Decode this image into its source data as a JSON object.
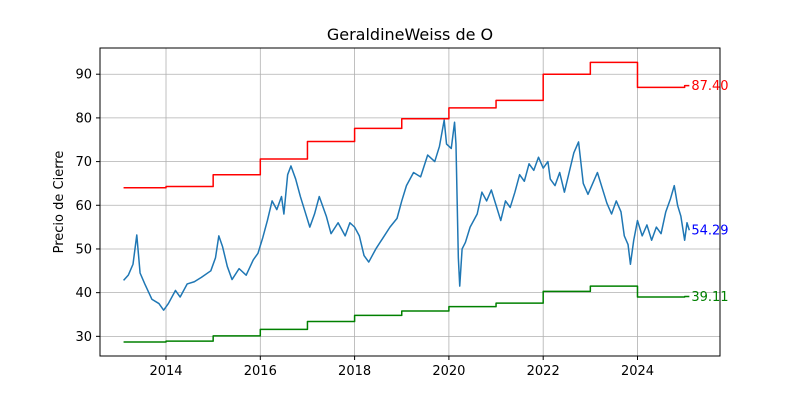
{
  "chart_data": {
    "type": "line",
    "title": "GeraldineWeiss de O",
    "xlabel": "",
    "ylabel": "Precio de Cierre",
    "xlim": [
      2012.6,
      2025.75
    ],
    "ylim": [
      25.5,
      96
    ],
    "x_ticks": [
      2014,
      2016,
      2018,
      2020,
      2022,
      2024
    ],
    "x_tick_labels": [
      "2014",
      "2016",
      "2018",
      "2020",
      "2022",
      "2024"
    ],
    "y_ticks": [
      30,
      40,
      50,
      60,
      70,
      80,
      90
    ],
    "y_tick_labels": [
      "30",
      "40",
      "50",
      "60",
      "70",
      "80",
      "90"
    ],
    "grid": true,
    "series": [
      {
        "color": "#1f77b4",
        "points": [
          [
            2013.1,
            42.8
          ],
          [
            2013.2,
            44.0
          ],
          [
            2013.3,
            46.5
          ],
          [
            2013.38,
            53.2
          ],
          [
            2013.45,
            44.5
          ],
          [
            2013.55,
            42.0
          ],
          [
            2013.7,
            38.5
          ],
          [
            2013.85,
            37.5
          ],
          [
            2013.95,
            36.0
          ],
          [
            2014.05,
            37.5
          ],
          [
            2014.2,
            40.5
          ],
          [
            2014.3,
            39.0
          ],
          [
            2014.45,
            42.0
          ],
          [
            2014.6,
            42.5
          ],
          [
            2014.75,
            43.5
          ],
          [
            2014.95,
            45.0
          ],
          [
            2015.05,
            48.0
          ],
          [
            2015.12,
            53.0
          ],
          [
            2015.2,
            50.5
          ],
          [
            2015.3,
            46.0
          ],
          [
            2015.4,
            43.0
          ],
          [
            2015.55,
            45.5
          ],
          [
            2015.7,
            44.0
          ],
          [
            2015.85,
            47.5
          ],
          [
            2015.95,
            49.0
          ],
          [
            2016.05,
            52.5
          ],
          [
            2016.15,
            56.5
          ],
          [
            2016.25,
            61.0
          ],
          [
            2016.35,
            59.0
          ],
          [
            2016.45,
            62.0
          ],
          [
            2016.5,
            58.0
          ],
          [
            2016.58,
            67.0
          ],
          [
            2016.65,
            69.0
          ],
          [
            2016.75,
            66.0
          ],
          [
            2016.85,
            62.0
          ],
          [
            2016.95,
            58.5
          ],
          [
            2017.05,
            55.0
          ],
          [
            2017.15,
            58.0
          ],
          [
            2017.25,
            62.0
          ],
          [
            2017.4,
            57.5
          ],
          [
            2017.5,
            53.5
          ],
          [
            2017.65,
            56.0
          ],
          [
            2017.8,
            53.0
          ],
          [
            2017.9,
            56.0
          ],
          [
            2018.0,
            55.0
          ],
          [
            2018.1,
            53.0
          ],
          [
            2018.2,
            48.5
          ],
          [
            2018.3,
            47.0
          ],
          [
            2018.45,
            50.0
          ],
          [
            2018.6,
            52.5
          ],
          [
            2018.75,
            55.0
          ],
          [
            2018.9,
            57.0
          ],
          [
            2019.0,
            61.0
          ],
          [
            2019.1,
            64.5
          ],
          [
            2019.25,
            67.5
          ],
          [
            2019.4,
            66.5
          ],
          [
            2019.55,
            71.5
          ],
          [
            2019.7,
            70.0
          ],
          [
            2019.8,
            73.5
          ],
          [
            2019.9,
            79.5
          ],
          [
            2019.95,
            74.0
          ],
          [
            2020.05,
            73.0
          ],
          [
            2020.12,
            79.0
          ],
          [
            2020.15,
            74.0
          ],
          [
            2020.2,
            48.0
          ],
          [
            2020.23,
            41.5
          ],
          [
            2020.28,
            50.0
          ],
          [
            2020.35,
            51.5
          ],
          [
            2020.45,
            55.0
          ],
          [
            2020.6,
            58.0
          ],
          [
            2020.7,
            63.0
          ],
          [
            2020.8,
            61.0
          ],
          [
            2020.9,
            63.5
          ],
          [
            2021.0,
            60.0
          ],
          [
            2021.1,
            56.5
          ],
          [
            2021.2,
            61.0
          ],
          [
            2021.3,
            59.5
          ],
          [
            2021.4,
            63.0
          ],
          [
            2021.5,
            67.0
          ],
          [
            2021.6,
            65.5
          ],
          [
            2021.7,
            69.5
          ],
          [
            2021.8,
            68.0
          ],
          [
            2021.9,
            71.0
          ],
          [
            2022.0,
            68.5
          ],
          [
            2022.1,
            70.0
          ],
          [
            2022.15,
            66.0
          ],
          [
            2022.25,
            64.5
          ],
          [
            2022.35,
            67.5
          ],
          [
            2022.45,
            63.0
          ],
          [
            2022.55,
            67.5
          ],
          [
            2022.65,
            72.0
          ],
          [
            2022.75,
            74.5
          ],
          [
            2022.85,
            65.0
          ],
          [
            2022.95,
            62.5
          ],
          [
            2023.05,
            65.0
          ],
          [
            2023.15,
            67.5
          ],
          [
            2023.25,
            64.0
          ],
          [
            2023.35,
            60.5
          ],
          [
            2023.45,
            58.0
          ],
          [
            2023.55,
            61.0
          ],
          [
            2023.65,
            58.5
          ],
          [
            2023.72,
            53.0
          ],
          [
            2023.8,
            51.0
          ],
          [
            2023.85,
            46.5
          ],
          [
            2023.92,
            52.0
          ],
          [
            2024.0,
            56.5
          ],
          [
            2024.1,
            53.0
          ],
          [
            2024.2,
            55.5
          ],
          [
            2024.3,
            52.0
          ],
          [
            2024.4,
            55.0
          ],
          [
            2024.5,
            53.5
          ],
          [
            2024.6,
            58.5
          ],
          [
            2024.7,
            61.5
          ],
          [
            2024.78,
            64.5
          ],
          [
            2024.85,
            60.0
          ],
          [
            2024.92,
            57.5
          ],
          [
            2025.0,
            52.0
          ],
          [
            2025.05,
            56.0
          ],
          [
            2025.1,
            54.29
          ]
        ]
      },
      {
        "color": "#ff0000",
        "step": true,
        "points": [
          [
            2013.1,
            64.0
          ],
          [
            2014.0,
            64.3
          ],
          [
            2015.0,
            67.0
          ],
          [
            2016.0,
            70.6
          ],
          [
            2017.0,
            74.6
          ],
          [
            2018.0,
            77.6
          ],
          [
            2019.0,
            79.8
          ],
          [
            2020.0,
            82.3
          ],
          [
            2021.0,
            84.0
          ],
          [
            2022.0,
            90.0
          ],
          [
            2023.0,
            92.7
          ],
          [
            2024.0,
            87.0
          ],
          [
            2025.0,
            87.4
          ],
          [
            2025.1,
            87.4
          ]
        ]
      },
      {
        "color": "#008000",
        "step": true,
        "points": [
          [
            2013.1,
            28.7
          ],
          [
            2014.0,
            28.9
          ],
          [
            2015.0,
            30.1
          ],
          [
            2016.0,
            31.6
          ],
          [
            2017.0,
            33.4
          ],
          [
            2018.0,
            34.8
          ],
          [
            2019.0,
            35.8
          ],
          [
            2020.0,
            36.8
          ],
          [
            2021.0,
            37.6
          ],
          [
            2022.0,
            40.3
          ],
          [
            2023.0,
            41.5
          ],
          [
            2024.0,
            39.0
          ],
          [
            2025.0,
            39.11
          ],
          [
            2025.1,
            39.11
          ]
        ]
      }
    ],
    "annotations": [
      {
        "text": "87.40",
        "x": 2025.1,
        "y": 87.4,
        "color": "#ff0000"
      },
      {
        "text": "54.29",
        "x": 2025.1,
        "y": 54.29,
        "color": "#0000ff"
      },
      {
        "text": "39.11",
        "x": 2025.1,
        "y": 39.11,
        "color": "#008000"
      }
    ]
  }
}
